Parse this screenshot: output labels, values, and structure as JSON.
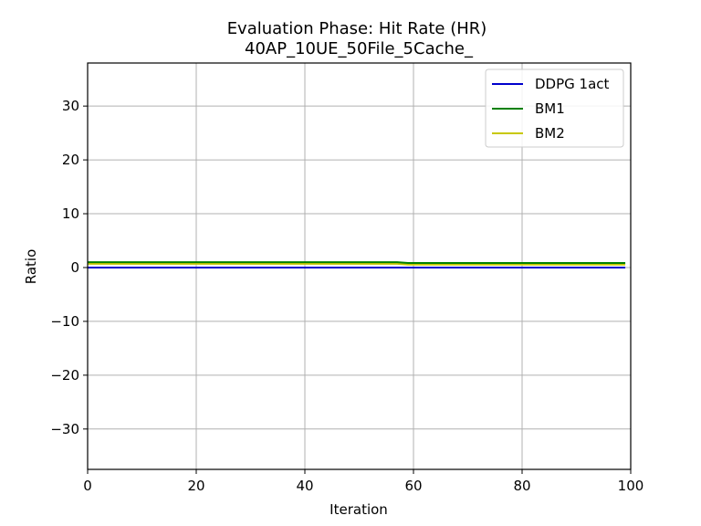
{
  "chart_data": {
    "type": "line",
    "title": "Evaluation Phase: Hit Rate (HR)",
    "subtitle": "40AP_10UE_50File_5Cache_",
    "xlabel": "Iteration",
    "ylabel": "Ratio",
    "xlim": [
      0,
      100
    ],
    "ylim": [
      -37.5,
      38
    ],
    "x_ticks": [
      0,
      20,
      40,
      60,
      80,
      100
    ],
    "y_ticks": [
      -30,
      -20,
      -10,
      0,
      10,
      20,
      30
    ],
    "x_tick_labels": [
      "0",
      "20",
      "40",
      "60",
      "80",
      "100"
    ],
    "y_tick_labels": [
      "−30",
      "−20",
      "−10",
      "0",
      "10",
      "20",
      "30"
    ],
    "grid": true,
    "legend_position": "top-right",
    "series": [
      {
        "name": "DDPG 1act",
        "color": "#0000cc",
        "x": [
          0,
          99
        ],
        "y": [
          0.0,
          0.0
        ]
      },
      {
        "name": "BM1",
        "color": "#008000",
        "x": [
          0,
          57,
          59,
          99
        ],
        "y": [
          1.0,
          1.0,
          0.85,
          0.85
        ]
      },
      {
        "name": "BM2",
        "color": "#c8c800",
        "x": [
          0,
          57,
          59,
          99
        ],
        "y": [
          0.7,
          0.7,
          0.55,
          0.55
        ]
      }
    ]
  }
}
